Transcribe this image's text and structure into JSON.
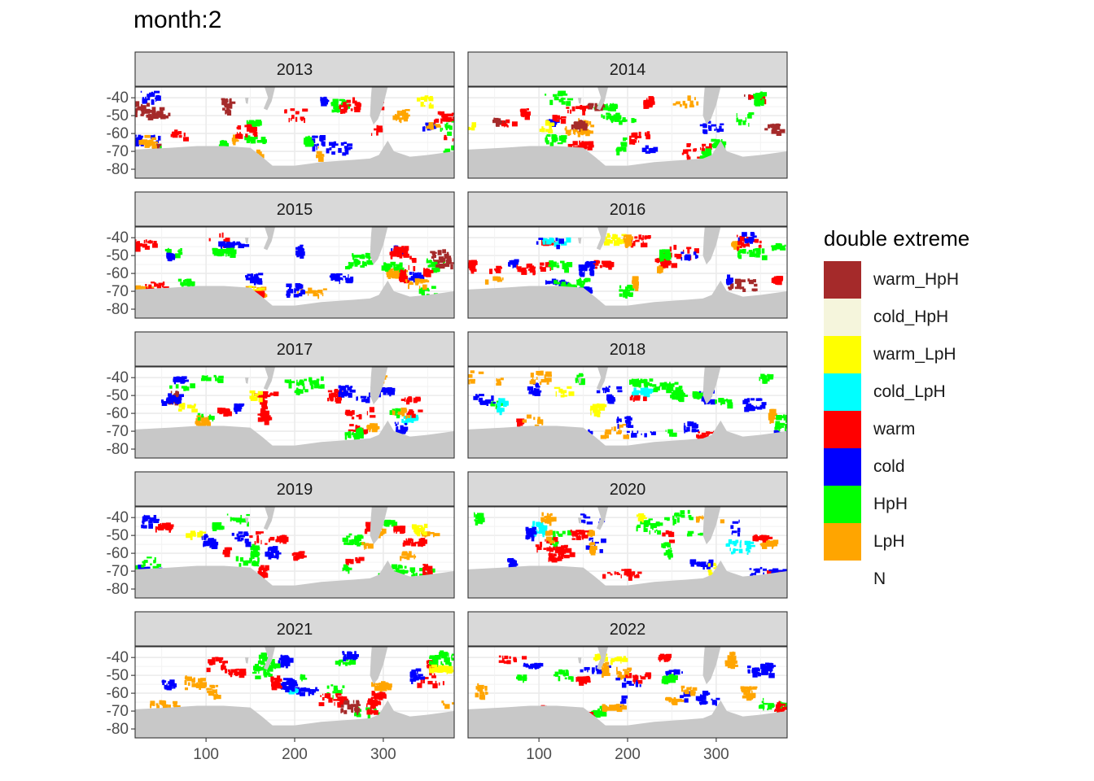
{
  "title": "month:2",
  "chart_data": {
    "type": "heatmap",
    "title": "month:2",
    "facets": [
      "2013",
      "2014",
      "2015",
      "2016",
      "2017",
      "2018",
      "2019",
      "2020",
      "2021",
      "2022"
    ],
    "xlim": [
      20,
      380
    ],
    "ylim": [
      -85,
      -34
    ],
    "x_ticks": [
      100,
      200,
      300
    ],
    "x_tick_labels": [
      "100",
      "200",
      "300"
    ],
    "y_ticks": [
      -40,
      -50,
      -60,
      -70,
      -80
    ],
    "y_tick_labels": [
      "-40",
      "-50",
      "-60",
      "-70",
      "-80"
    ],
    "xlabel": "",
    "ylabel": "",
    "legend": {
      "title": "double extreme",
      "position": "right",
      "entries": [
        {
          "label": "warm_HpH",
          "color": "#A52A2A"
        },
        {
          "label": "cold_HpH",
          "color": "#F5F5DC"
        },
        {
          "label": "warm_LpH",
          "color": "#FFFF00"
        },
        {
          "label": "cold_LpH",
          "color": "#00FFFF"
        },
        {
          "label": "warm",
          "color": "#FF0000"
        },
        {
          "label": "cold",
          "color": "#0000FF"
        },
        {
          "label": "HpH",
          "color": "#00FF00"
        },
        {
          "label": "LpH",
          "color": "#FFA500"
        },
        {
          "label": "N",
          "color": "transparent"
        }
      ]
    },
    "land_color": "#C8C8C8",
    "ocean_color": "#FFFFFF"
  }
}
